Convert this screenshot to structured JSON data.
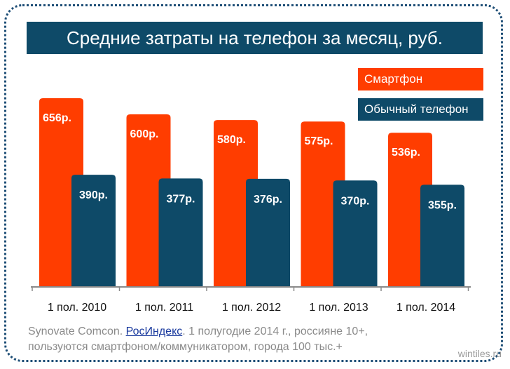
{
  "chart_data": {
    "type": "bar",
    "title": "Средние затраты на телефон за месяц, руб.",
    "categories": [
      "1 пол. 2010",
      "1 пол. 2011",
      "1 пол. 2012",
      "1 пол. 2013",
      "1 пол. 2014"
    ],
    "series": [
      {
        "name": "Смартфон",
        "values": [
          656,
          600,
          580,
          575,
          536
        ],
        "labels": [
          "656р.",
          "600р.",
          "580р.",
          "575р.",
          "536р."
        ],
        "color": "#ff3d00"
      },
      {
        "name": "Обычный телефон",
        "values": [
          390,
          377,
          376,
          370,
          355
        ],
        "labels": [
          "390р.",
          "377р.",
          "376р.",
          "370р.",
          "355р."
        ],
        "color": "#0e4a68"
      }
    ],
    "ylim": [
      0,
      700
    ],
    "grid": false,
    "legend": "top-right"
  },
  "footnote": {
    "source_prefix": "Synovate Comcon. ",
    "source_link": "РосИндекс",
    "source_suffix": ". 1 полугодие 2014 г., россияне 10+,",
    "line2": "пользуются смартфоном/коммуникатором, города 100 тыс.+"
  },
  "watermark": "wintiles.ru",
  "colors": {
    "accent": "#ff3d00",
    "brand": "#0e4a68",
    "frame": "#1f4f77"
  }
}
